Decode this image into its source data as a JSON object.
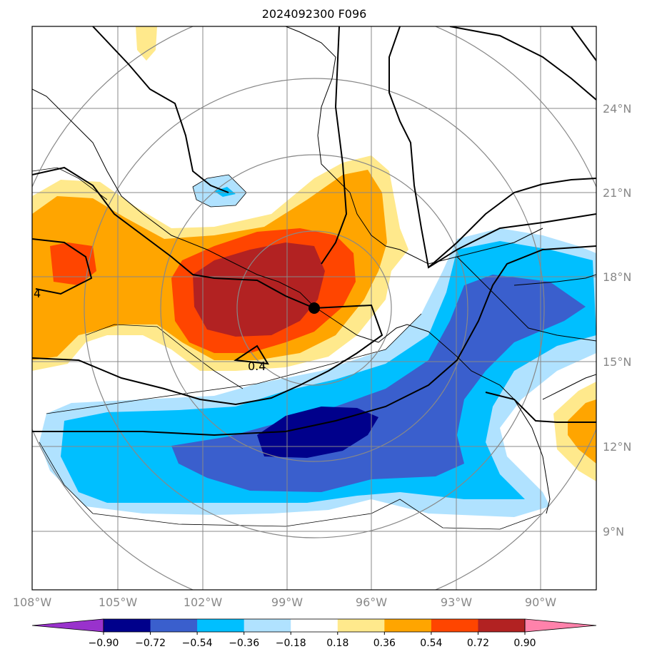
{
  "title": "2024092300 F096",
  "map": {
    "lon_range": [
      -108,
      -88
    ],
    "lat_range": [
      7,
      27
    ],
    "lon_ticks": [
      "108°W",
      "105°W",
      "102°W",
      "99°W",
      "96°W",
      "93°W",
      "90°W"
    ],
    "lat_ticks": [
      "9°N",
      "12°N",
      "15°N",
      "18°N",
      "21°N",
      "24°N"
    ],
    "center_marker": {
      "lon": -98.0,
      "lat": 16.9
    },
    "contour_labels": [
      "4",
      "0.4"
    ],
    "colors": {
      "grid": "#888888",
      "coast": "#000000"
    }
  },
  "colorbar": {
    "labels": [
      "−0.90",
      "−0.72",
      "−0.54",
      "−0.36",
      "−0.18",
      "0.18",
      "0.36",
      "0.54",
      "0.72",
      "0.90"
    ],
    "colors": [
      "#9932cc",
      "#00008b",
      "#3a5fcd",
      "#00bfff",
      "#b0e2ff",
      "#ffffff",
      "#ffe98c",
      "#ffa500",
      "#ff4500",
      "#b22222",
      "#ff82ab"
    ]
  }
}
